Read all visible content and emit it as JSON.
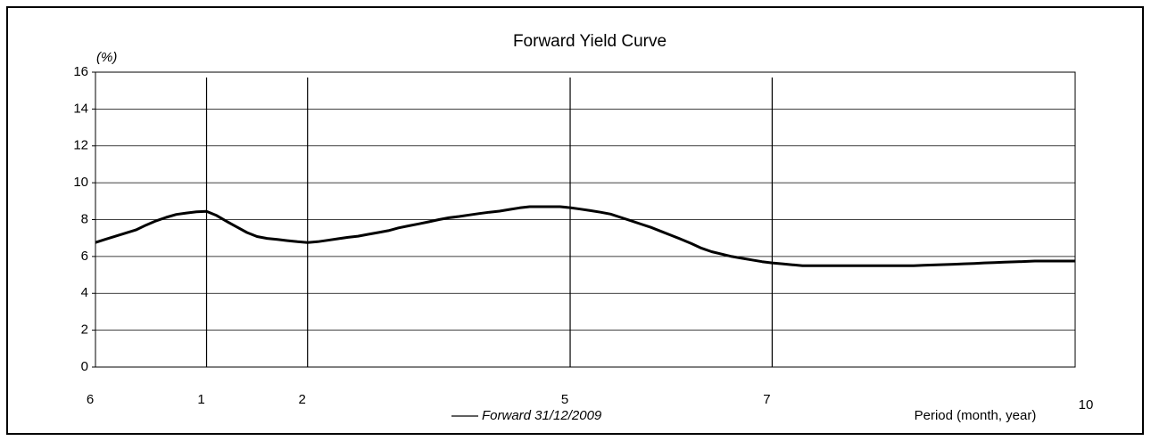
{
  "chart_data": {
    "type": "line",
    "title": "Forward Yield Curve",
    "y_label": "(%)",
    "x_label": "Period (month, year)",
    "categories": [
      "6",
      null,
      null,
      null,
      null,
      null,
      null,
      null,
      null,
      null,
      null,
      "1",
      null,
      null,
      null,
      null,
      null,
      null,
      null,
      null,
      null,
      "2",
      null,
      null,
      null,
      null,
      null,
      null,
      null,
      null,
      null,
      null,
      null,
      null,
      null,
      null,
      null,
      null,
      null,
      null,
      null,
      null,
      null,
      null,
      null,
      null,
      null,
      "5",
      null,
      null,
      null,
      null,
      null,
      null,
      null,
      null,
      null,
      null,
      null,
      null,
      null,
      null,
      null,
      null,
      null,
      null,
      null,
      "7",
      null,
      null,
      null,
      null,
      null,
      null,
      null,
      null,
      null,
      null,
      null,
      null,
      null,
      null,
      null,
      null,
      null,
      null,
      null,
      null,
      null,
      null,
      null,
      null,
      null,
      null,
      null,
      null,
      null,
      "10"
    ],
    "series": [
      {
        "name": "Forward 31/12/2009",
        "color": "#000000",
        "values": [
          6.76,
          6.93,
          7.1,
          7.27,
          7.44,
          7.7,
          7.93,
          8.12,
          8.28,
          8.36,
          8.42,
          8.45,
          8.22,
          7.9,
          7.6,
          7.3,
          7.08,
          6.98,
          6.92,
          6.86,
          6.8,
          6.76,
          6.8,
          6.88,
          6.96,
          7.04,
          7.1,
          7.2,
          7.3,
          7.4,
          7.55,
          7.66,
          7.77,
          7.88,
          8.0,
          8.1,
          8.17,
          8.25,
          8.33,
          8.4,
          8.46,
          8.55,
          8.64,
          8.7,
          8.7,
          8.7,
          8.7,
          8.65,
          8.57,
          8.49,
          8.4,
          8.3,
          8.12,
          7.94,
          7.76,
          7.58,
          7.36,
          7.15,
          6.93,
          6.7,
          6.45,
          6.26,
          6.13,
          6.0,
          5.9,
          5.81,
          5.72,
          5.65,
          5.6,
          5.55,
          5.5,
          5.5,
          5.5,
          5.5,
          5.5,
          5.5,
          5.5,
          5.5,
          5.5,
          5.5,
          5.5,
          5.5,
          5.52,
          5.54,
          5.56,
          5.58,
          5.6,
          5.62,
          5.65,
          5.67,
          5.69,
          5.71,
          5.73,
          5.75,
          5.75,
          5.75,
          5.75,
          5.75
        ]
      }
    ],
    "ylim": [
      0,
      16
    ],
    "yticks": [
      0,
      2,
      4,
      6,
      8,
      10,
      12,
      14,
      16
    ],
    "grid": true,
    "legend": "bottom"
  }
}
